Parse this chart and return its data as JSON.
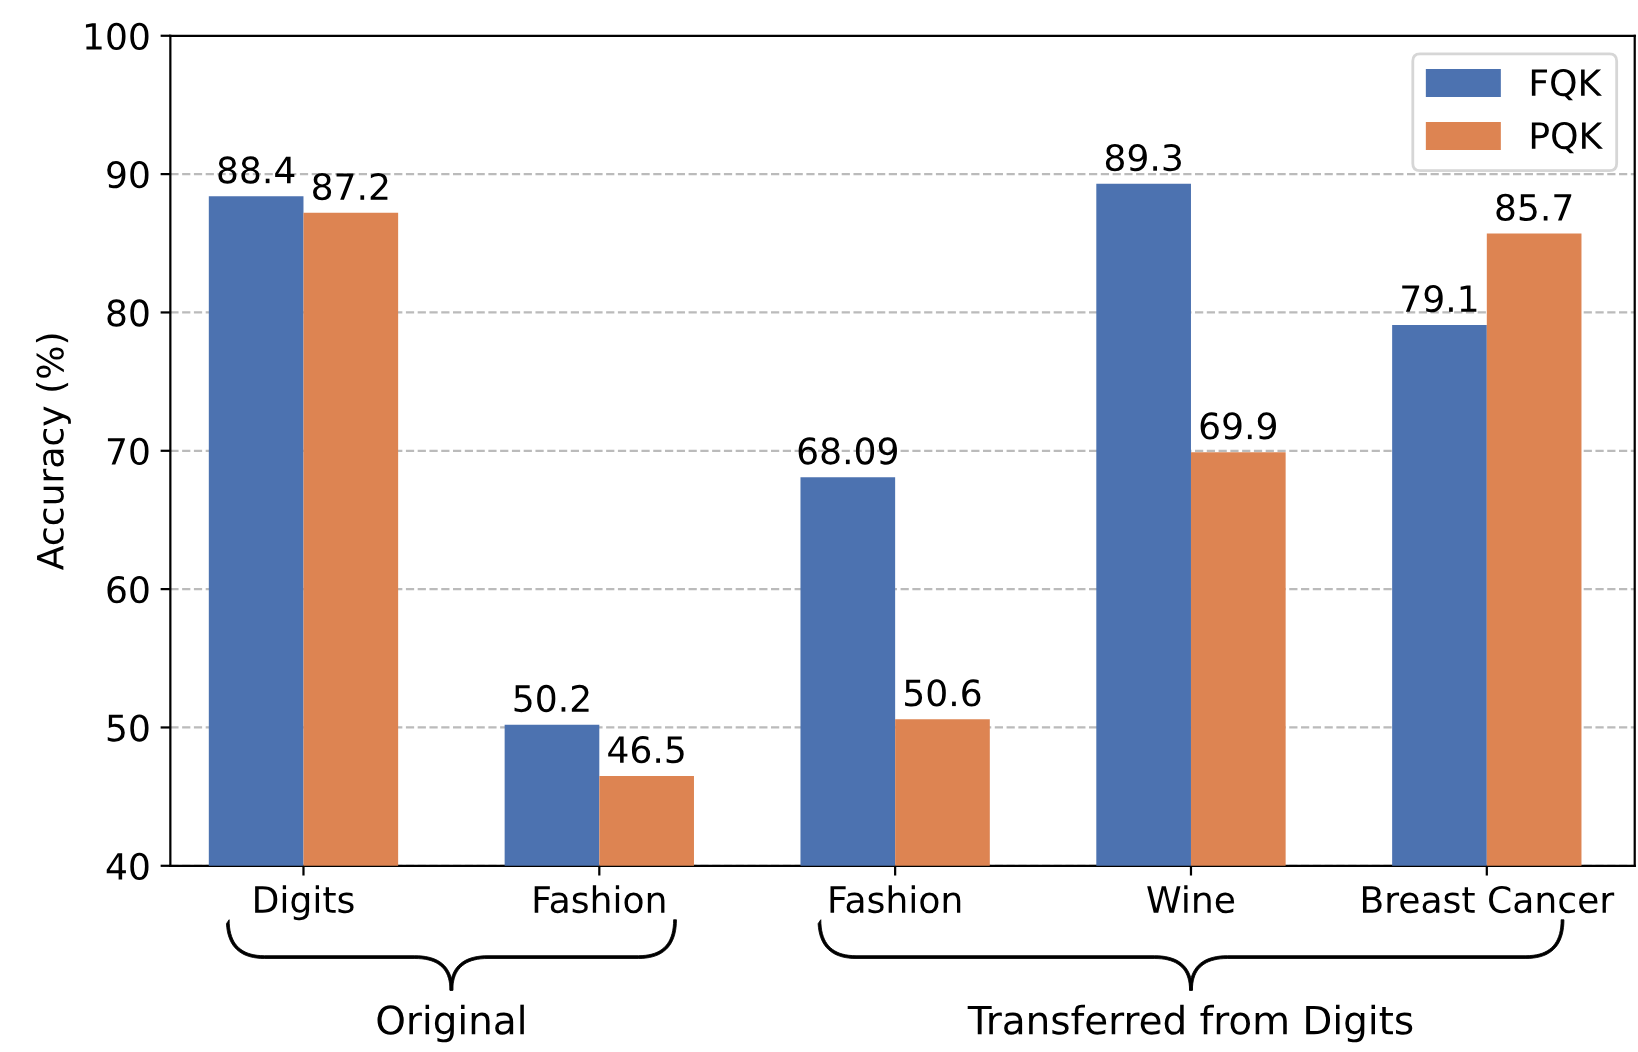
{
  "chart_data": {
    "type": "bar",
    "ylabel": "Accuracy (%)",
    "categories": [
      "Digits",
      "Fashion",
      "Fashion",
      "Wine",
      "Breast Cancer"
    ],
    "series": [
      {
        "name": "FQK",
        "color": "#4c72b0",
        "values": [
          88.4,
          50.2,
          68.09,
          89.3,
          79.1
        ],
        "value_labels": [
          "88.4",
          "50.2",
          "68.09",
          "89.3",
          "79.1"
        ]
      },
      {
        "name": "PQK",
        "color": "#dd8452",
        "values": [
          87.2,
          46.5,
          50.6,
          69.9,
          85.7
        ],
        "value_labels": [
          "87.2",
          "46.5",
          "50.6",
          "69.9",
          "85.7"
        ]
      }
    ],
    "ylim": [
      40,
      100
    ],
    "yticks": [
      40,
      50,
      60,
      70,
      80,
      90,
      100
    ],
    "grid": "y",
    "legend": "top right",
    "annotations": [
      "Original",
      "Transferred from Digits"
    ]
  }
}
